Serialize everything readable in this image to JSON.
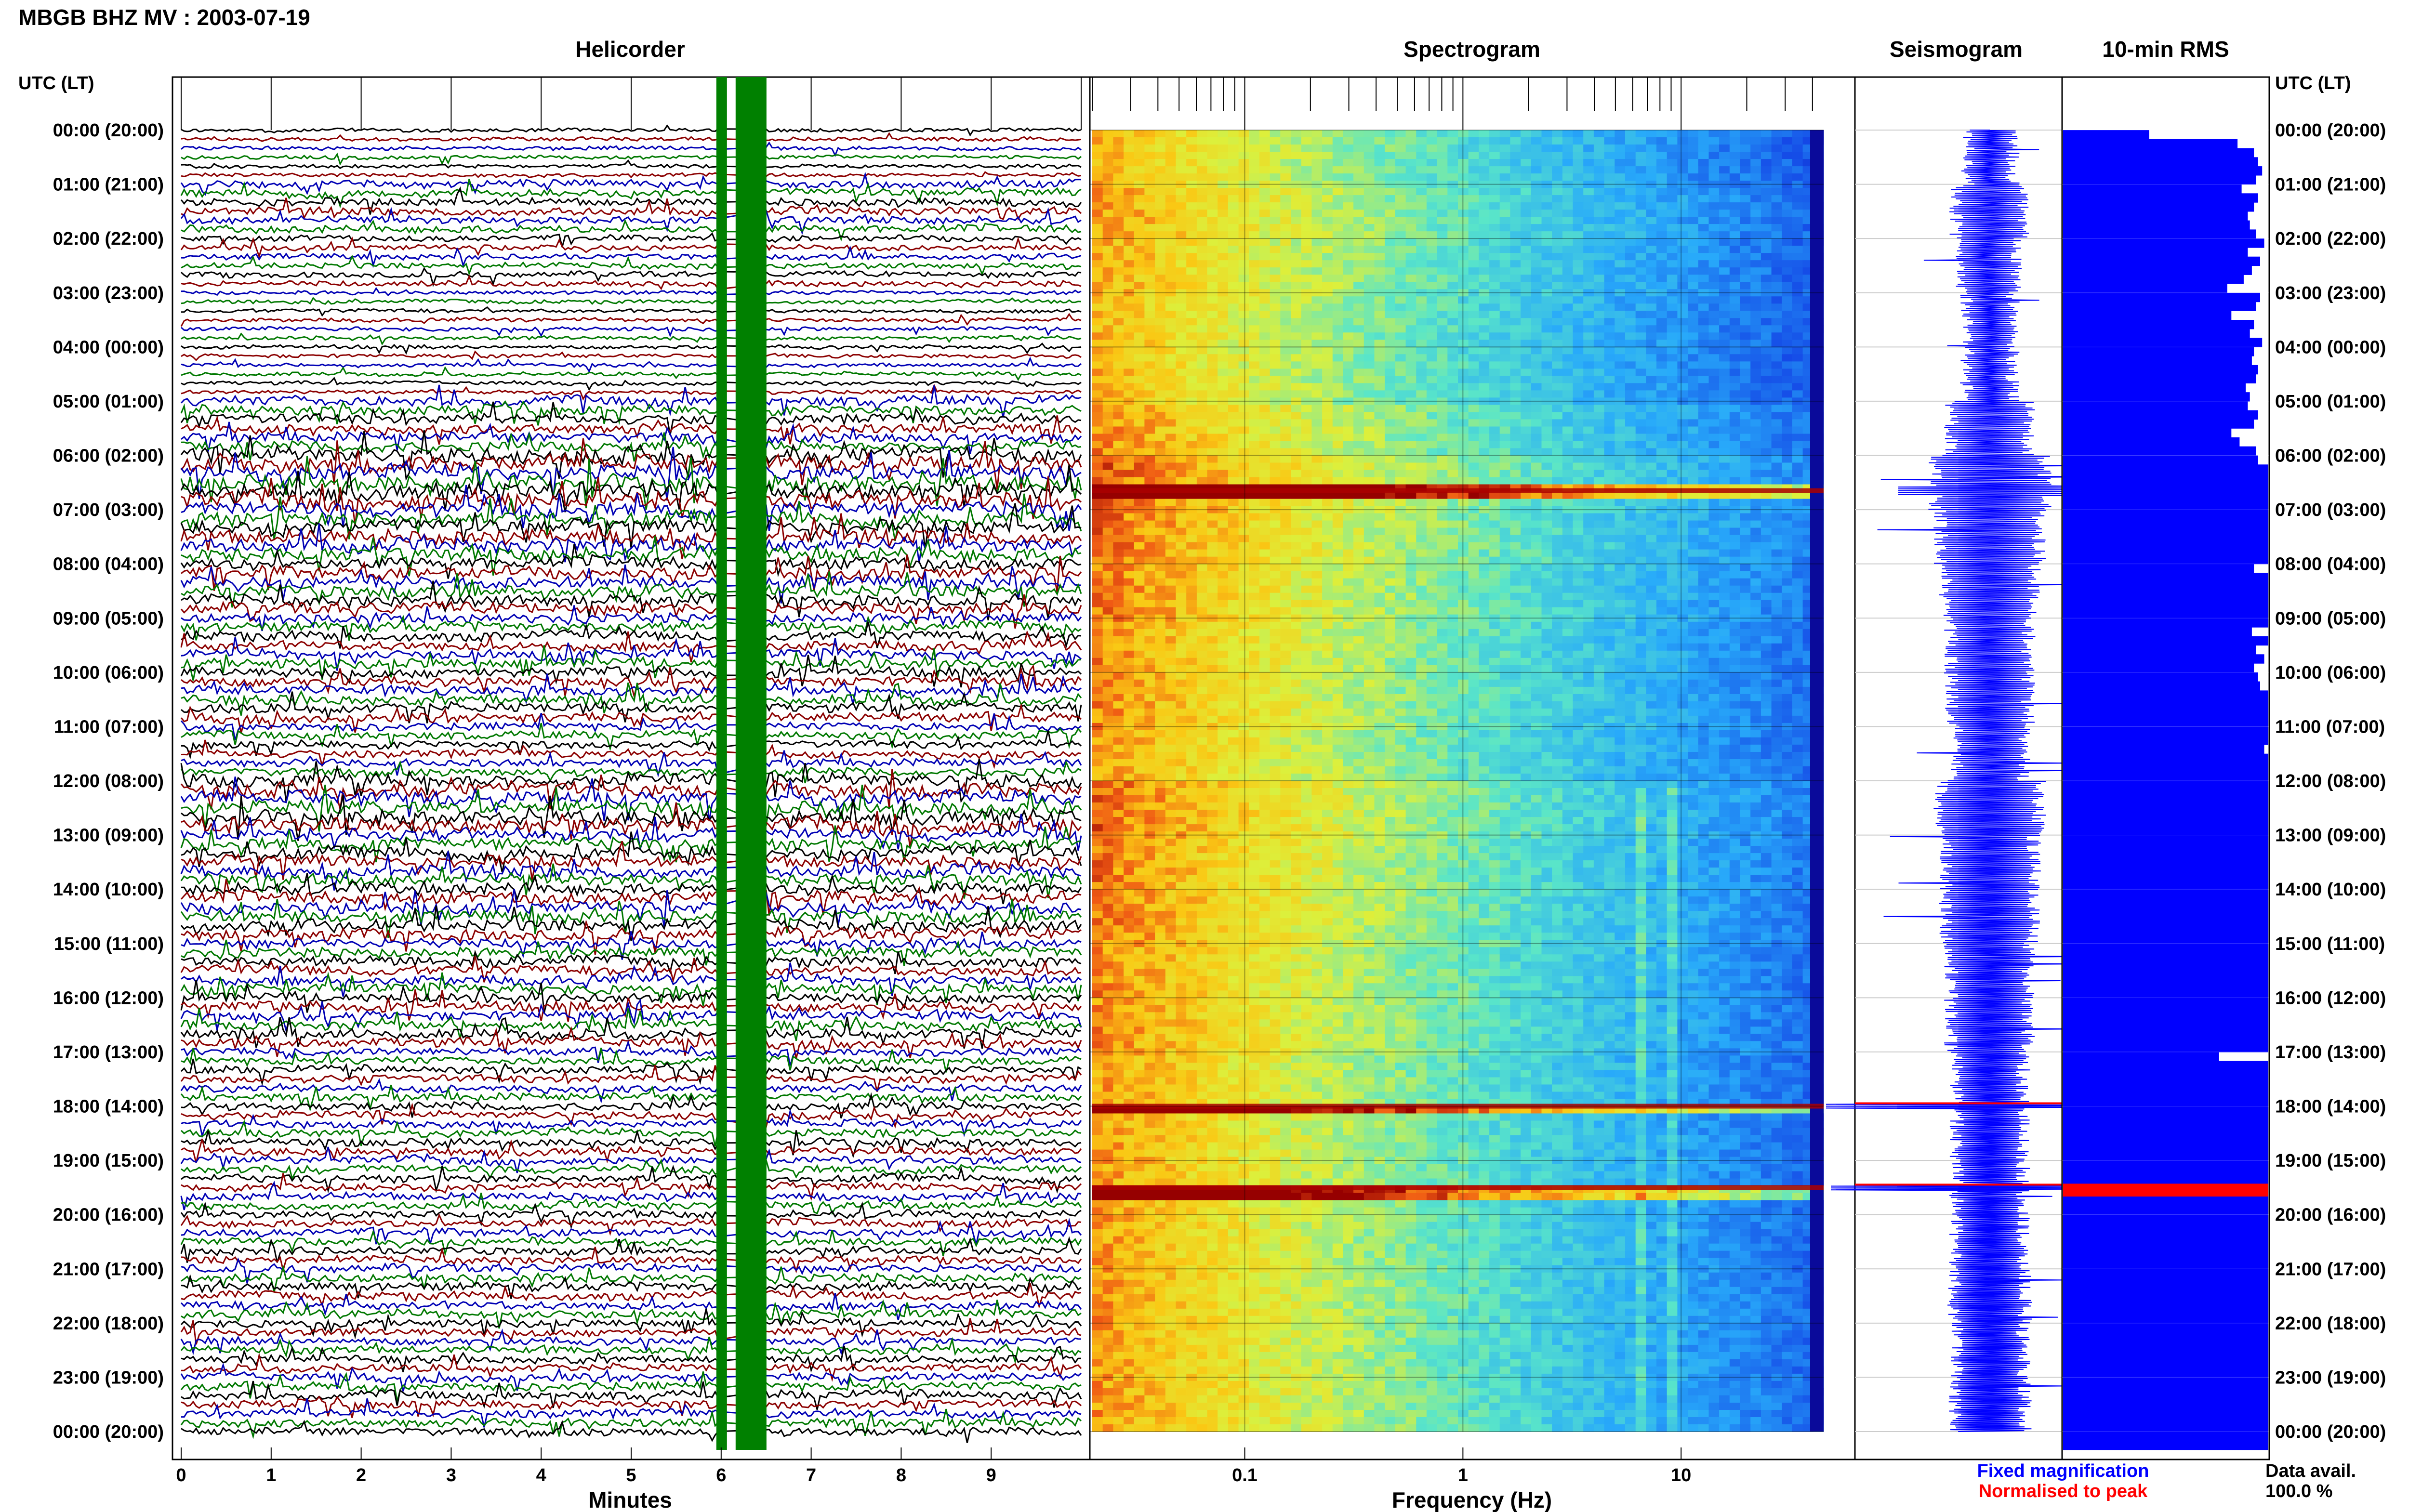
{
  "title": "MBGB BHZ MV : 2003-07-19",
  "panels": {
    "helicorder": "Helicorder",
    "spectrogram": "Spectrogram",
    "seismogram": "Seismogram",
    "rms": "10-min RMS"
  },
  "time_axis_header": "UTC (LT)",
  "time_labels": [
    "00:00 (20:00)",
    "01:00 (21:00)",
    "02:00 (22:00)",
    "03:00 (23:00)",
    "04:00 (00:00)",
    "05:00 (01:00)",
    "06:00 (02:00)",
    "07:00 (03:00)",
    "08:00 (04:00)",
    "09:00 (05:00)",
    "10:00 (06:00)",
    "11:00 (07:00)",
    "12:00 (08:00)",
    "13:00 (09:00)",
    "14:00 (10:00)",
    "15:00 (11:00)",
    "16:00 (12:00)",
    "17:00 (13:00)",
    "18:00 (14:00)",
    "19:00 (15:00)",
    "20:00 (16:00)",
    "21:00 (17:00)",
    "22:00 (18:00)",
    "23:00 (19:00)",
    "00:00 (20:00)"
  ],
  "x_axes": {
    "helicorder_label": "Minutes",
    "helicorder_ticks": [
      "0",
      "1",
      "2",
      "3",
      "4",
      "5",
      "6",
      "7",
      "8",
      "9"
    ],
    "frequency_label": "Frequency (Hz)",
    "frequency_ticks": [
      "0.1",
      "1",
      "10"
    ]
  },
  "legend": {
    "fixed": "Fixed magnification",
    "normalised": "Normalised to peak",
    "fixed_color": "#0000ff",
    "normalised_color": "#ff0000"
  },
  "data_avail": {
    "label": "Data avail.",
    "value": "100.0 %"
  },
  "colors": {
    "trace_cycle": [
      "#000000",
      "#8b0000",
      "#0000b4",
      "#007800"
    ],
    "gap_band": "#008000",
    "rms_fill": "#0000ff",
    "rms_peak": "#ff0000"
  },
  "chart_data": [
    {
      "type": "line",
      "name": "helicorder",
      "rows_per_hour": 6,
      "x_range_minutes": [
        0,
        10
      ],
      "gap_minutes": [
        6.0,
        6.45
      ],
      "activity_by_hour": [
        1,
        2,
        1.5,
        1,
        1,
        2.5,
        4,
        3.5,
        3,
        2.5,
        2.5,
        2,
        3.5,
        3,
        3,
        2.5,
        2.5,
        2,
        2,
        2,
        2,
        2.2,
        2,
        2.2,
        2
      ]
    },
    {
      "type": "heatmap",
      "name": "spectrogram",
      "x_scale": "log",
      "x_range_hz": [
        0.02,
        45
      ],
      "hours": 24,
      "strong_lines_hour": [
        6.65,
        18.0,
        19.5
      ],
      "resonance_hz": [
        6.3,
        9.0
      ]
    },
    {
      "type": "bar",
      "name": "10-min RMS",
      "samples_per_hour": 6,
      "values": [
        0.42,
        0.85,
        0.93,
        0.95,
        0.97,
        0.94,
        0.87,
        0.95,
        0.93,
        0.9,
        0.91,
        0.94,
        0.98,
        0.9,
        0.96,
        0.92,
        0.88,
        0.8,
        0.96,
        0.94,
        0.82,
        0.93,
        0.91,
        0.97,
        0.93,
        0.92,
        0.95,
        0.94,
        0.89,
        0.91,
        0.9,
        0.95,
        0.93,
        0.82,
        0.86,
        0.94,
        0.95,
        1.0,
        1.0,
        1.0,
        1.0,
        1.0,
        1.0,
        1.0,
        1.0,
        1.0,
        1.0,
        1.0,
        0.93,
        1.0,
        1.0,
        1.0,
        1.0,
        1.0,
        1.0,
        0.92,
        1.0,
        0.94,
        0.98,
        0.93,
        0.95,
        0.96,
        1.0,
        1.0,
        1.0,
        1.0,
        1.0,
        1.0,
        0.98,
        1.0,
        1.0,
        1.0,
        1.0,
        1.0,
        1.0,
        1.0,
        1.0,
        1.0,
        1.0,
        1.0,
        1.0,
        1.0,
        1.0,
        1.0,
        1.0,
        1.0,
        1.0,
        1.0,
        1.0,
        1.0,
        1.0,
        1.0,
        1.0,
        1.0,
        1.0,
        1.0,
        1.0,
        1.0,
        1.0,
        1.0,
        1.0,
        1.0,
        0.76,
        1.0,
        1.0,
        1.0,
        1.0,
        1.0,
        1.0,
        1.0,
        1.0,
        1.0,
        1.0,
        1.0,
        1.0,
        1.0,
        1.0,
        1.0,
        1.0,
        1.0,
        1.0,
        1.0,
        1.0,
        1.0,
        1.0,
        1.0,
        1.0,
        1.0,
        1.0,
        1.0,
        1.0,
        1.0,
        1.0,
        1.0,
        1.0,
        1.0,
        1.0,
        1.0,
        1.0,
        1.0,
        1.0,
        1.0,
        1.0,
        1.0,
        1.0,
        1.0
      ]
    }
  ]
}
